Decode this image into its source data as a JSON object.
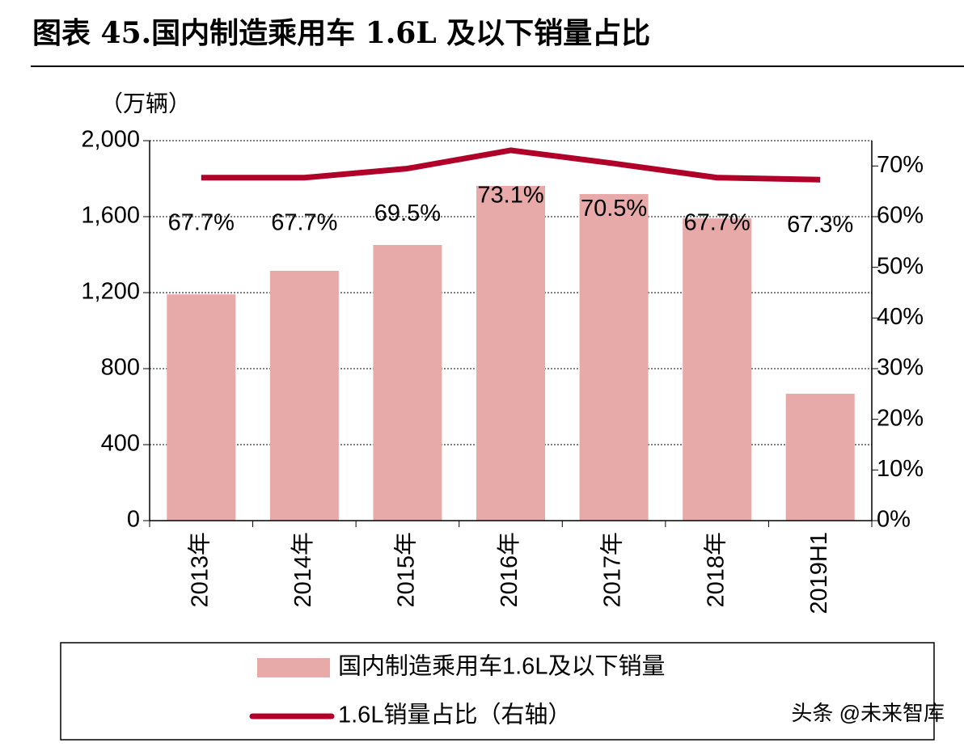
{
  "chart_data": {
    "type": "bar-line",
    "title": "图表 45.国内制造乘用车 1.6L 及以下销量占比",
    "y_label": "（万辆）",
    "categories": [
      "2013年",
      "2014年",
      "2015年",
      "2016年",
      "2017年",
      "2018年",
      "2019H1"
    ],
    "series": [
      {
        "name": "国内制造乘用车1.6L及以下销量",
        "type": "bar",
        "color": "#e8aaa9",
        "values": [
          1191,
          1315,
          1451,
          1762,
          1719,
          1591,
          668
        ]
      },
      {
        "name": "1.6L销量占比（右轴）",
        "type": "line",
        "axis": "y2",
        "color": "#b0002a",
        "values": [
          67.7,
          67.7,
          69.5,
          73.1,
          70.5,
          67.7,
          67.3
        ],
        "value_labels": [
          "67.7%",
          "67.7%",
          "69.5%",
          "73.1%",
          "70.5%",
          "67.7%",
          "67.3%"
        ]
      }
    ],
    "ylim": [
      0,
      2000
    ],
    "yticks": [
      0,
      400,
      800,
      {
        "value": 1200,
        "label": "1,200"
      },
      {
        "value": 1600,
        "label": "1,600"
      },
      {
        "value": 2000,
        "label": "2,000"
      }
    ],
    "y2lim": [
      0,
      75
    ],
    "y2ticks": [
      {
        "value": 0,
        "label": "0%"
      },
      {
        "value": 10,
        "label": "10%"
      },
      {
        "value": 20,
        "label": "20%"
      },
      {
        "value": 30,
        "label": "30%"
      },
      {
        "value": 40,
        "label": "40%"
      },
      {
        "value": 50,
        "label": "50%"
      },
      {
        "value": 60,
        "label": "60%"
      },
      {
        "value": 70,
        "label": "70%"
      }
    ],
    "grid": true,
    "legend": "bottom",
    "watermark": "头条 @未来智库"
  }
}
